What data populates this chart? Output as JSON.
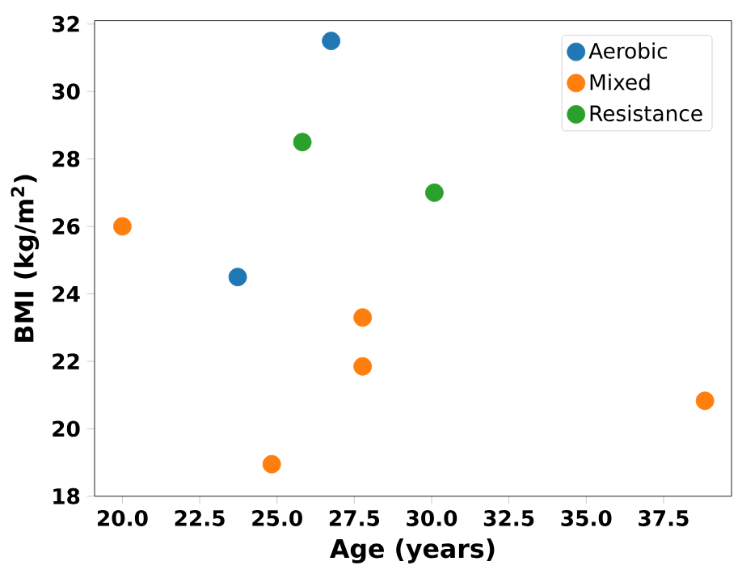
{
  "chart_data": {
    "type": "scatter",
    "xlabel": "Age (years)",
    "ylabel": "BMI (kg/m$^{2}$)",
    "xlim": [
      19.1,
      39.7
    ],
    "ylim": [
      18,
      32.1
    ],
    "xticks": [
      {
        "value": 20,
        "label": "20.0"
      },
      {
        "value": 22.5,
        "label": "22.5"
      },
      {
        "value": 25,
        "label": "25.0"
      },
      {
        "value": 27.5,
        "label": "27.5"
      },
      {
        "value": 30,
        "label": "30.0"
      },
      {
        "value": 32.5,
        "label": "32.5"
      },
      {
        "value": 35,
        "label": "35.0"
      },
      {
        "value": 37.5,
        "label": "37.5"
      }
    ],
    "yticks": [
      18,
      20,
      22,
      24,
      26,
      28,
      30,
      32
    ],
    "legend": "top right",
    "series": [
      {
        "name": "Aerobic",
        "color": "#1f77b4",
        "x": [
          26.75,
          23.73
        ],
        "values": [
          31.5,
          24.5
        ]
      },
      {
        "name": "Mixed",
        "color": "#ff7f0e",
        "x": [
          20.0,
          27.77,
          27.77,
          24.83,
          38.84
        ],
        "values": [
          26.0,
          23.3,
          21.85,
          18.95,
          20.83
        ]
      },
      {
        "name": "Resistance",
        "color": "#2ca02c",
        "x": [
          25.82,
          30.09
        ],
        "values": [
          28.5,
          27.0
        ]
      }
    ]
  }
}
